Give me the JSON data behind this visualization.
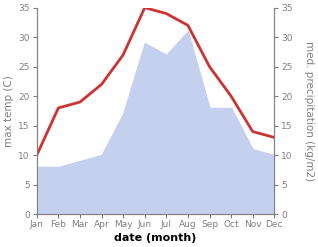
{
  "months": [
    "Jan",
    "Feb",
    "Mar",
    "Apr",
    "May",
    "Jun",
    "Jul",
    "Aug",
    "Sep",
    "Oct",
    "Nov",
    "Dec"
  ],
  "max_temp": [
    10,
    18,
    19,
    22,
    27,
    35,
    34,
    32,
    25,
    20,
    14,
    13
  ],
  "precipitation": [
    8,
    8,
    9,
    10,
    17,
    29,
    27,
    31,
    18,
    18,
    11,
    10
  ],
  "temp_color": "#cc3333",
  "precip_color": "#c5d0ee",
  "ylim_left": [
    0,
    35
  ],
  "ylim_right": [
    0,
    35
  ],
  "yticks": [
    0,
    5,
    10,
    15,
    20,
    25,
    30,
    35
  ],
  "ylabel_left": "max temp (C)",
  "ylabel_right": "med. precipitation (kg/m2)",
  "xlabel": "date (month)",
  "bg_color": "#ffffff",
  "label_fontsize": 7.5,
  "tick_fontsize": 6.5,
  "xlabel_fontsize": 8,
  "linewidth": 2.0
}
